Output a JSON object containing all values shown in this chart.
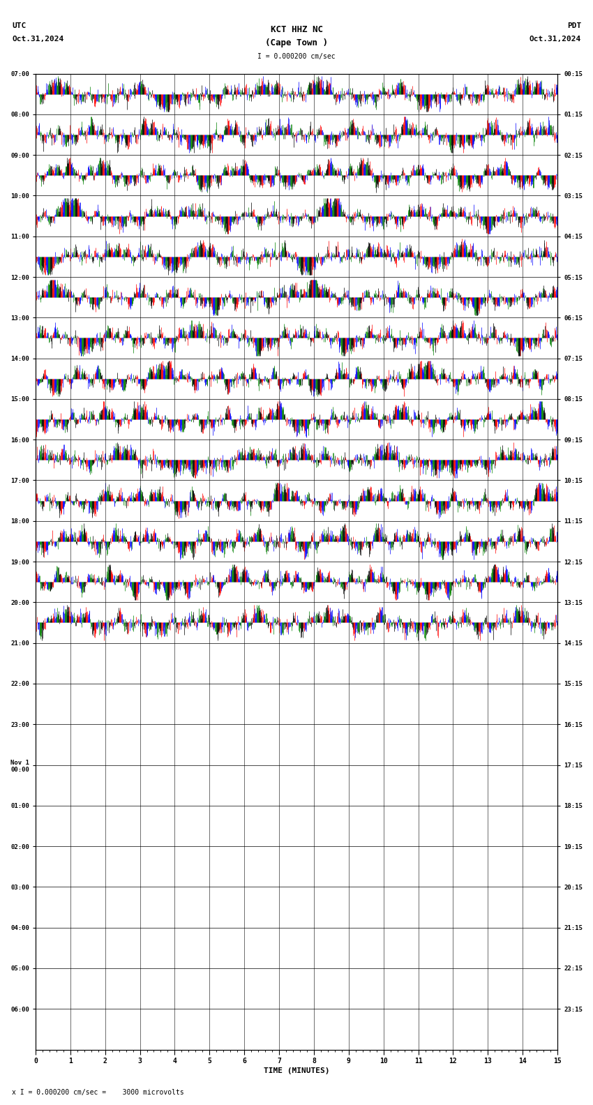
{
  "title_line1": "KCT HHZ NC",
  "title_line2": "(Cape Town )",
  "scale_label": "I = 0.000200 cm/sec",
  "utc_label": "UTC",
  "utc_date": "Oct.31,2024",
  "pdt_label": "PDT",
  "pdt_date": "Oct.31,2024",
  "bottom_label": "x I = 0.000200 cm/sec =    3000 microvolts",
  "xlabel": "TIME (MINUTES)",
  "left_times": [
    "07:00",
    "08:00",
    "09:00",
    "10:00",
    "11:00",
    "12:00",
    "13:00",
    "14:00",
    "15:00",
    "16:00",
    "17:00",
    "18:00",
    "19:00",
    "20:00",
    "21:00",
    "22:00",
    "23:00",
    "Nov 1\n00:00",
    "01:00",
    "02:00",
    "03:00",
    "04:00",
    "05:00",
    "06:00"
  ],
  "right_times": [
    "00:15",
    "01:15",
    "02:15",
    "03:15",
    "04:15",
    "05:15",
    "06:15",
    "07:15",
    "08:15",
    "09:15",
    "10:15",
    "11:15",
    "12:15",
    "13:15",
    "14:15",
    "15:15",
    "16:15",
    "17:15",
    "18:15",
    "19:15",
    "20:15",
    "21:15",
    "22:15",
    "23:15"
  ],
  "n_rows": 24,
  "n_active_rows": 14,
  "x_min": 0,
  "x_max": 15,
  "bg_color": "#ffffff",
  "colors_signal": [
    "#ff0000",
    "#0000ff",
    "#008000",
    "#000000"
  ],
  "amp": 0.44,
  "n_points": 1500,
  "block_size": 6,
  "seed": 42
}
